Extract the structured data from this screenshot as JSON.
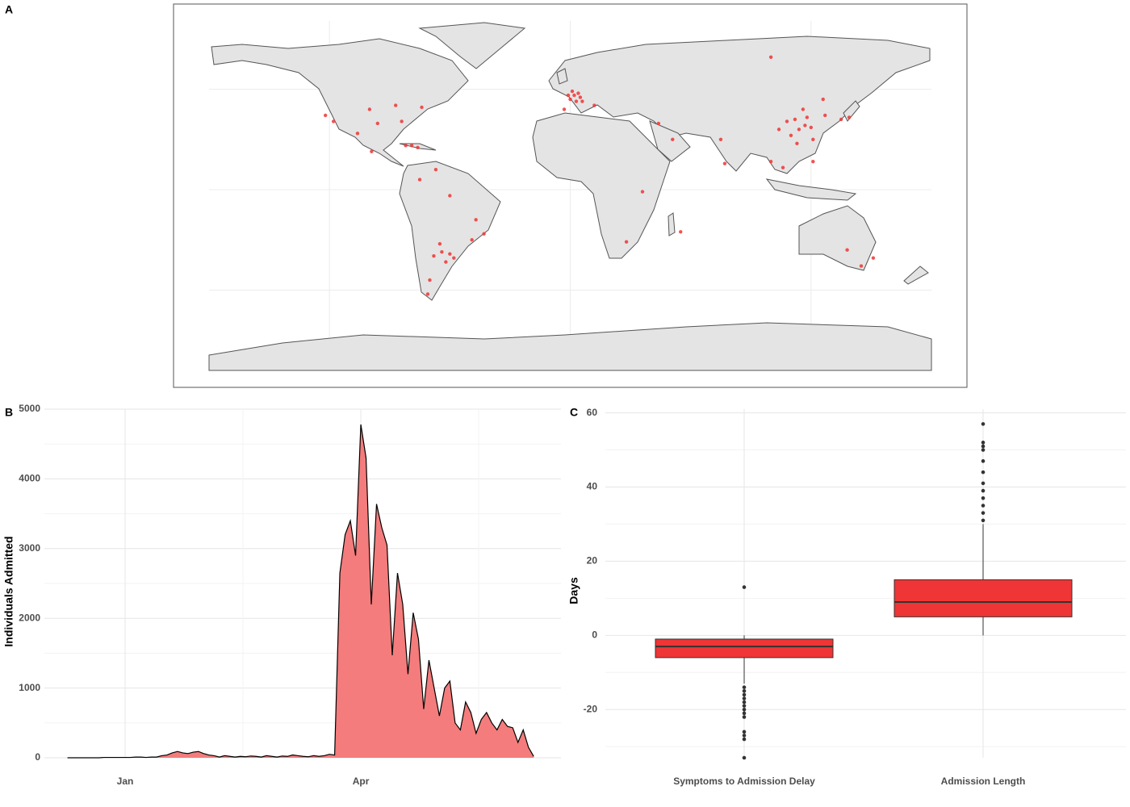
{
  "chart_data": [
    {
      "type": "map",
      "panel_label": "A",
      "color": "#ef3535",
      "xlim": [
        -180,
        180
      ],
      "ylim": [
        -90,
        84
      ],
      "xticks": [
        -120,
        0,
        120
      ],
      "yticks": [
        -50,
        0,
        50
      ],
      "grid": true,
      "x": [
        2,
        0,
        4,
        -1,
        3,
        5,
        1,
        6,
        -3,
        12,
        -79,
        -76,
        -82,
        -122,
        -87,
        -74,
        -96,
        -84,
        -118,
        -100,
        -58,
        -60,
        -64,
        -62,
        -68,
        -65,
        -70,
        -71,
        -47,
        -43,
        -49,
        -60,
        116,
        114,
        113,
        120,
        104,
        108,
        112,
        118,
        121,
        110,
        117,
        126,
        139,
        135,
        127,
        106,
        77,
        75,
        100,
        121,
        151,
        145,
        138,
        100,
        51,
        44,
        28,
        36,
        55,
        -99,
        -106,
        -75,
        -67
      ],
      "y": [
        47,
        45,
        48,
        47,
        44,
        46,
        49,
        44,
        40,
        42,
        22,
        21,
        22,
        37,
        42,
        41,
        33,
        34,
        34,
        40,
        -34,
        -32,
        -31,
        -36,
        -33,
        -27,
        -45,
        -52,
        -15,
        -22,
        -25,
        -3,
        40,
        30,
        23,
        31,
        30,
        34,
        35,
        36,
        25,
        27,
        32,
        45,
        36,
        35,
        37,
        11,
        13,
        25,
        14,
        14,
        -34,
        -38,
        -30,
        66,
        25,
        33,
        -26,
        -1,
        -21,
        19,
        28,
        5,
        10
      ]
    },
    {
      "type": "area",
      "panel_label": "B",
      "ylabel": "Individuals Admitted",
      "color": "#f47c7c",
      "line_color": "#000000",
      "categories": [
        null,
        null,
        null,
        null,
        null,
        null,
        null,
        null,
        null,
        null,
        null,
        "Jan",
        null,
        null,
        null,
        null,
        null,
        null,
        null,
        null,
        null,
        null,
        null,
        null,
        null,
        null,
        null,
        null,
        null,
        null,
        null,
        null,
        null,
        null,
        null,
        null,
        null,
        null,
        null,
        null,
        null,
        null,
        null,
        null,
        null,
        null,
        null,
        null,
        null,
        null,
        null,
        null,
        null,
        null,
        null,
        null,
        "Apr",
        null,
        null,
        null,
        null,
        null,
        null,
        null,
        null,
        null,
        null,
        null,
        null,
        null,
        null,
        null,
        null,
        null,
        null,
        null,
        null,
        null,
        null,
        null,
        null,
        null,
        null,
        null,
        null,
        null,
        null,
        null,
        null,
        null
      ],
      "values": [
        0,
        0,
        0,
        0,
        0,
        0,
        0,
        5,
        5,
        5,
        5,
        5,
        5,
        10,
        10,
        5,
        10,
        10,
        30,
        40,
        70,
        90,
        70,
        60,
        80,
        90,
        60,
        40,
        30,
        10,
        30,
        20,
        10,
        20,
        15,
        25,
        20,
        10,
        30,
        20,
        10,
        25,
        20,
        40,
        30,
        20,
        15,
        30,
        20,
        30,
        50,
        40,
        2650,
        3200,
        3400,
        2900,
        4780,
        4300,
        2200,
        3640,
        3300,
        3050,
        1470,
        2650,
        2200,
        1200,
        2080,
        1700,
        700,
        1400,
        1000,
        600,
        1000,
        1100,
        500,
        400,
        800,
        650,
        350,
        550,
        650,
        500,
        400,
        550,
        450,
        430,
        220,
        400,
        150,
        20
      ],
      "ylim": [
        0,
        5000
      ],
      "yticks": [
        0,
        1000,
        2000,
        3000,
        4000,
        5000
      ],
      "grid": true
    },
    {
      "type": "box",
      "panel_label": "C",
      "ylabel": "Days",
      "color": "#ef3535",
      "categories": [
        "Symptoms to Admission Delay",
        "Admission Length"
      ],
      "boxes": [
        {
          "whisker_low": -13,
          "q1": -6,
          "median": -3,
          "q3": -1,
          "whisker_high": 0,
          "outliers": [
            13,
            -14,
            -15,
            -16,
            -17,
            -18,
            -19,
            -20,
            -21,
            -22,
            -26,
            -27,
            -28,
            -33
          ]
        },
        {
          "whisker_low": 0,
          "q1": 5,
          "median": 9,
          "q3": 15,
          "whisker_high": 30,
          "outliers": [
            31,
            33,
            35,
            37,
            39,
            41,
            44,
            47,
            50,
            51,
            52,
            57
          ]
        }
      ],
      "ylim": [
        -33,
        61
      ],
      "yticks": [
        -20,
        0,
        20,
        40,
        60
      ],
      "grid": true
    }
  ]
}
